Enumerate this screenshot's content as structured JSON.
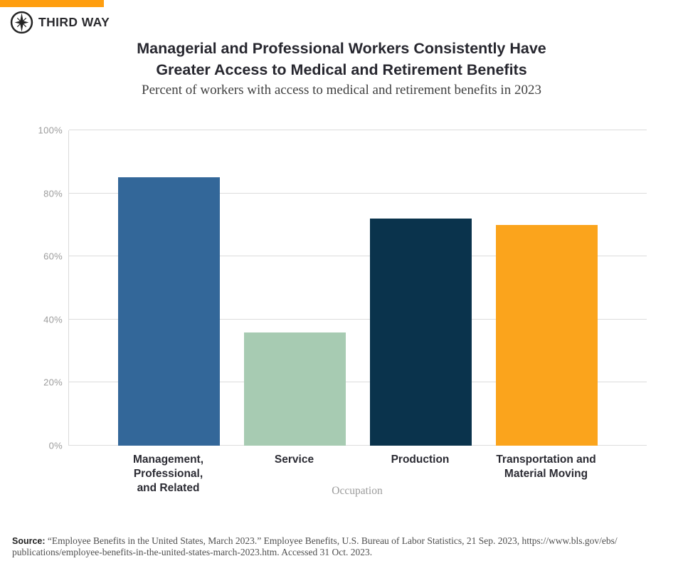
{
  "brand": {
    "logo_text": "THIRD WAY",
    "accent_color": "#FF9E0F",
    "logo_icon": "compass-star-icon",
    "logo_color": "#232323"
  },
  "header": {
    "title_line1": "Managerial and Professional Workers Consistently Have",
    "title_line2": "Greater Access to Medical and Retirement Benefits",
    "subtitle": "Percent of workers with access to medical and retirement benefits in 2023"
  },
  "chart_data": {
    "type": "bar",
    "categories": [
      "Management,\nProfessional,\nand Related",
      "Service",
      "Production",
      "Transportation and\nMaterial Moving"
    ],
    "values": [
      85,
      36,
      72,
      70
    ],
    "bar_colors": [
      "#336799",
      "#A7CBB2",
      "#0A334C",
      "#FBA41C"
    ],
    "title": "Managerial and Professional Workers Consistently Have Greater Access to Medical and Retirement Benefits",
    "subtitle": "Percent of workers with access to medical and retirement benefits in 2023",
    "xlabel": "Occupation",
    "ylabel": "",
    "ylim": [
      0,
      100
    ],
    "yticks": [
      0,
      20,
      40,
      60,
      80,
      100
    ],
    "ytick_labels": [
      "0%",
      "20%",
      "40%",
      "60%",
      "80%",
      "100%"
    ],
    "grid": true,
    "legend": false,
    "gridline_color": "#dcdcdc",
    "tick_label_color": "#9c9c9c"
  },
  "footer": {
    "source_label": "Source:",
    "source_line1": " “Employee Benefits in the United States, March 2023.” Employee Benefits, U.S. Bureau of Labor Statistics, 21 Sep. 2023, https://www.bls.gov/ebs/",
    "source_line2": "publications/employee-benefits-in-the-united-states-march-2023.htm. Accessed 31 Oct. 2023."
  }
}
